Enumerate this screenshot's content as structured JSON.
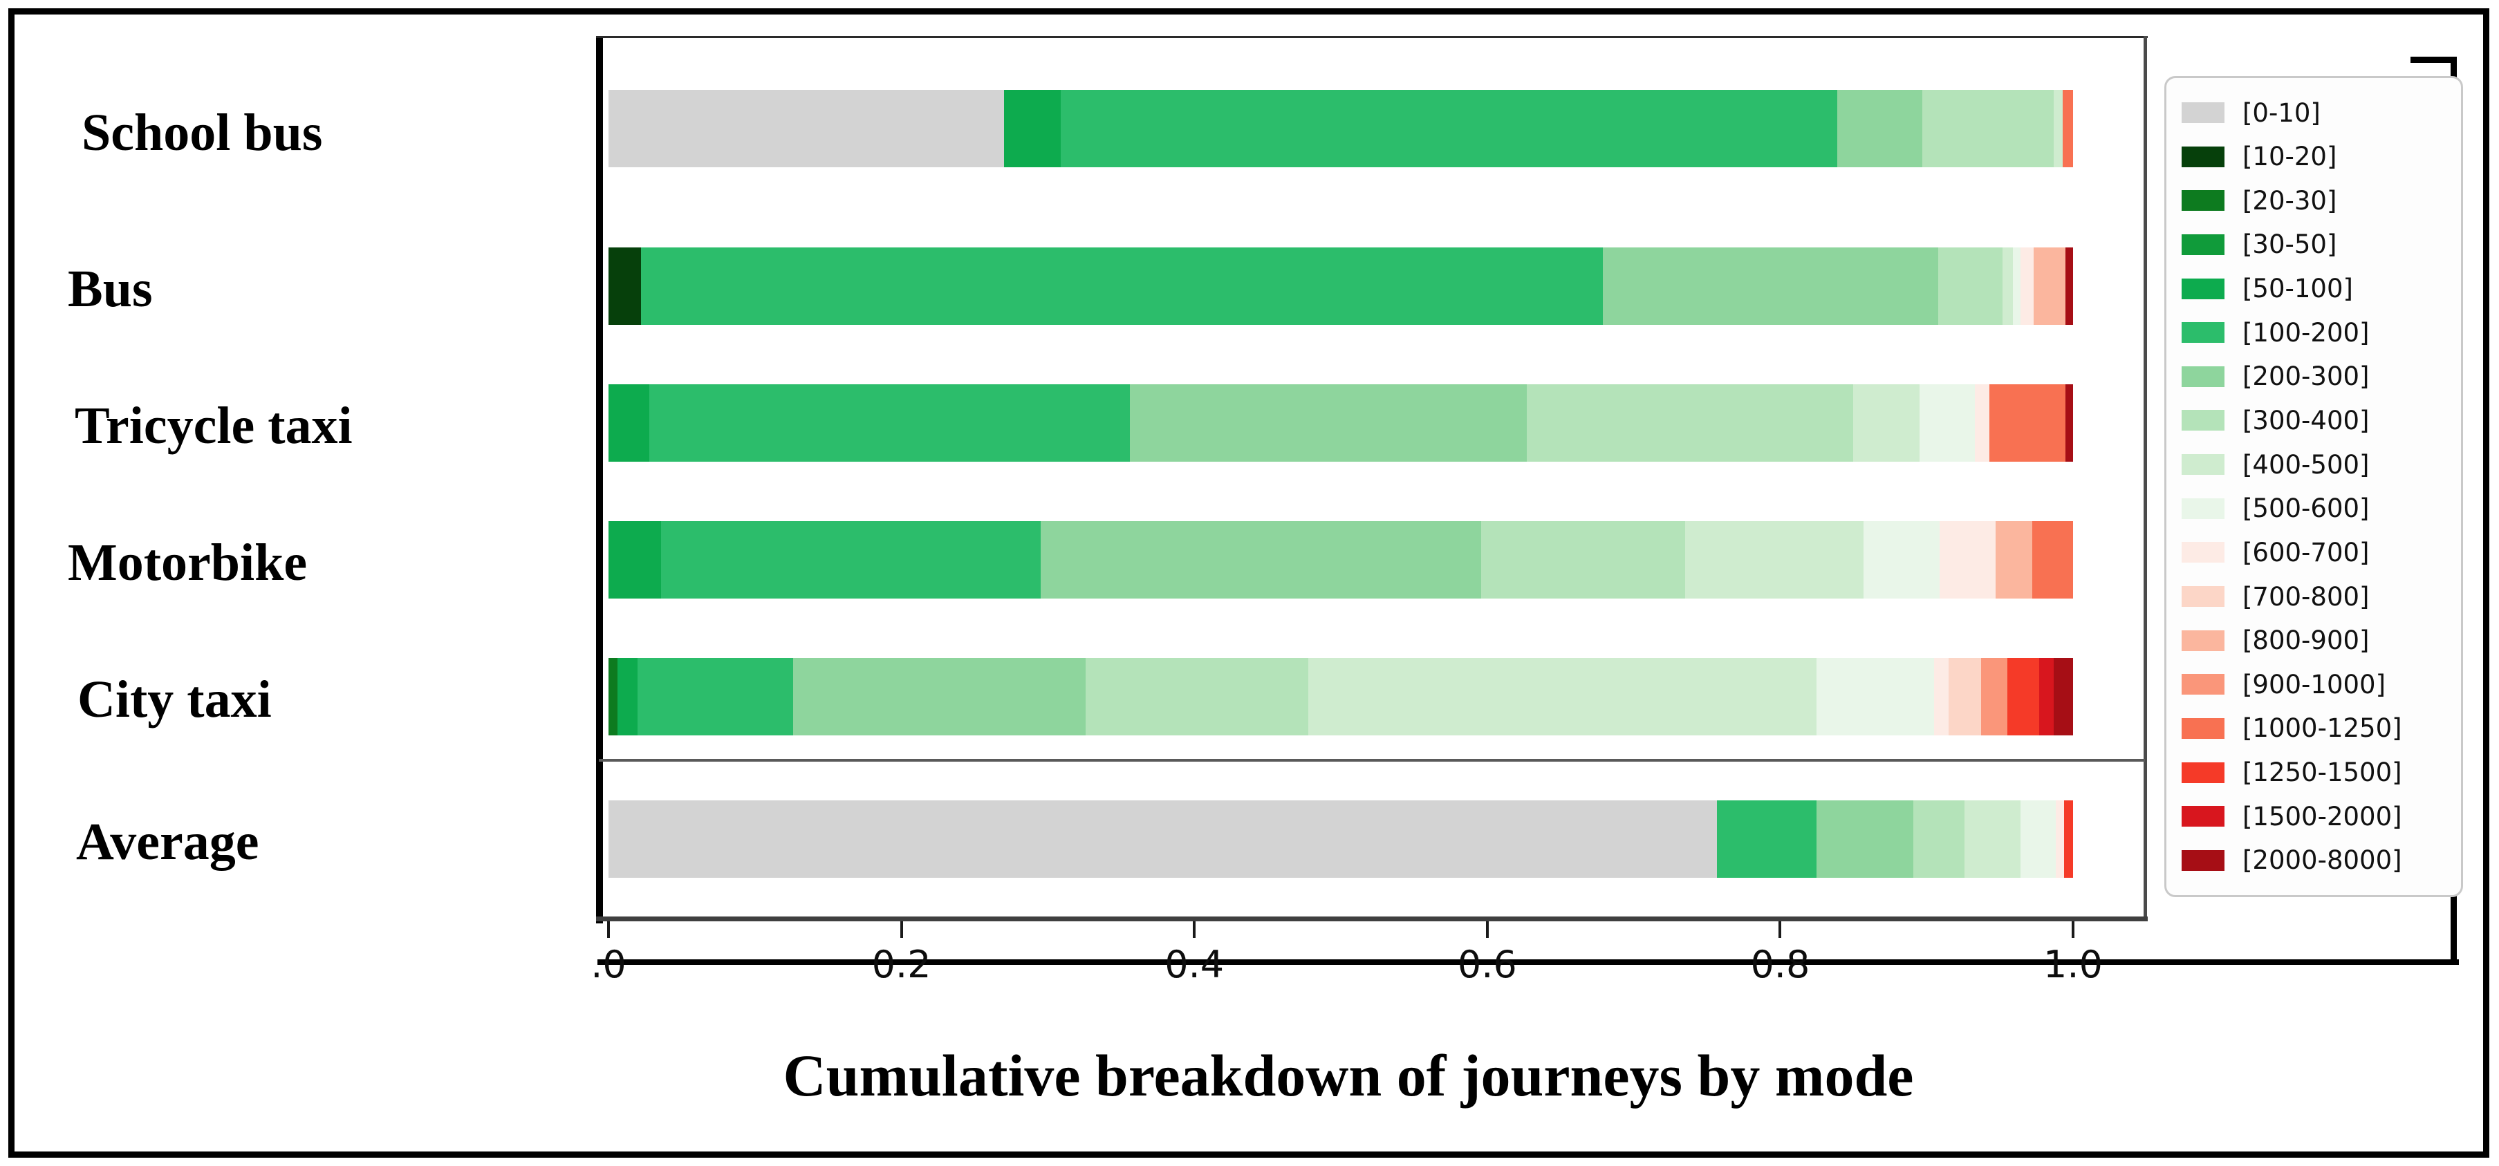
{
  "title": "Cumulative breakdown of journeys by mode",
  "axis": {
    "tick_labels": [
      ".0",
      "0.2",
      "0.4",
      "0.6",
      "0.8",
      "1.0"
    ],
    "tick_values": [
      0.0,
      0.2,
      0.4,
      0.6,
      0.8,
      1.0
    ]
  },
  "legend": {
    "position": "right",
    "border_color": "#c9c9c9"
  },
  "chart_data": {
    "type": "bar",
    "orientation": "horizontal",
    "stacked": true,
    "title": "Cumulative breakdown of journeys by mode",
    "xlabel": "",
    "ylabel": "",
    "xlim": [
      0.0,
      1.0
    ],
    "x_ticks": [
      0.0,
      0.2,
      0.4,
      0.6,
      0.8,
      1.0
    ],
    "grid": false,
    "legend_position": "right",
    "categories": [
      "School bus",
      "Bus",
      "Tricycle taxi",
      "Motorbike",
      "City taxi",
      "Average"
    ],
    "bins": [
      "[0-10]",
      "[10-20]",
      "[20-30]",
      "[30-50]",
      "[50-100]",
      "[100-200]",
      "[200-300]",
      "[300-400]",
      "[400-500]",
      "[500-600]",
      "[600-700]",
      "[700-800]",
      "[800-900]",
      "[900-1000]",
      "[1000-1250]",
      "[1250-1500]",
      "[1500-2000]",
      "[2000-8000]"
    ],
    "bin_colors": {
      "[0-10]": "#d3d3d3",
      "[10-20]": "#06400b",
      "[20-30]": "#0d7b1f",
      "[30-50]": "#109b3a",
      "[50-100]": "#0dab4e",
      "[100-200]": "#2cbd6b",
      "[200-300]": "#8ed59d",
      "[300-400]": "#b4e3b9",
      "[400-500]": "#cfeccf",
      "[500-600]": "#e9f6e9",
      "[600-700]": "#fdebe5",
      "[700-800]": "#fcd6c7",
      "[800-900]": "#fbb69e",
      "[900-1000]": "#fa967a",
      "[1000-1250]": "#f87152",
      "[1250-1500]": "#f53a28",
      "[1500-2000]": "#d8161e",
      "[2000-8000]": "#a60e15"
    },
    "rows": [
      {
        "category": "School bus",
        "segments": [
          {
            "bin": "[0-10]",
            "value": 0.27
          },
          {
            "bin": "[50-100]",
            "value": 0.039
          },
          {
            "bin": "[100-200]",
            "value": 0.53
          },
          {
            "bin": "[200-300]",
            "value": 0.058
          },
          {
            "bin": "[300-400]",
            "value": 0.09
          },
          {
            "bin": "[400-500]",
            "value": 0.006
          },
          {
            "bin": "[1000-1250]",
            "value": 0.007
          }
        ]
      },
      {
        "category": "Bus",
        "segments": [
          {
            "bin": "[10-20]",
            "value": 0.022
          },
          {
            "bin": "[100-200]",
            "value": 0.657
          },
          {
            "bin": "[200-300]",
            "value": 0.229
          },
          {
            "bin": "[300-400]",
            "value": 0.044
          },
          {
            "bin": "[400-500]",
            "value": 0.007
          },
          {
            "bin": "[500-600]",
            "value": 0.005
          },
          {
            "bin": "[600-700]",
            "value": 0.009
          },
          {
            "bin": "[800-900]",
            "value": 0.022
          },
          {
            "bin": "[2000-8000]",
            "value": 0.005
          }
        ]
      },
      {
        "category": "Tricycle taxi",
        "segments": [
          {
            "bin": "[50-100]",
            "value": 0.028
          },
          {
            "bin": "[100-200]",
            "value": 0.328
          },
          {
            "bin": "[200-300]",
            "value": 0.271
          },
          {
            "bin": "[300-400]",
            "value": 0.223
          },
          {
            "bin": "[400-500]",
            "value": 0.045
          },
          {
            "bin": "[500-600]",
            "value": 0.038
          },
          {
            "bin": "[600-700]",
            "value": 0.01
          },
          {
            "bin": "[1000-1250]",
            "value": 0.052
          },
          {
            "bin": "[2000-8000]",
            "value": 0.005
          }
        ]
      },
      {
        "category": "Motorbike",
        "segments": [
          {
            "bin": "[50-100]",
            "value": 0.036
          },
          {
            "bin": "[100-200]",
            "value": 0.259
          },
          {
            "bin": "[200-300]",
            "value": 0.301
          },
          {
            "bin": "[300-400]",
            "value": 0.139
          },
          {
            "bin": "[400-500]",
            "value": 0.122
          },
          {
            "bin": "[500-600]",
            "value": 0.052
          },
          {
            "bin": "[600-700]",
            "value": 0.038
          },
          {
            "bin": "[800-900]",
            "value": 0.025
          },
          {
            "bin": "[1000-1250]",
            "value": 0.028
          }
        ]
      },
      {
        "category": "City taxi",
        "segments": [
          {
            "bin": "[20-30]",
            "value": 0.006
          },
          {
            "bin": "[50-100]",
            "value": 0.014
          },
          {
            "bin": "[100-200]",
            "value": 0.106
          },
          {
            "bin": "[200-300]",
            "value": 0.2
          },
          {
            "bin": "[300-400]",
            "value": 0.152
          },
          {
            "bin": "[400-500]",
            "value": 0.347
          },
          {
            "bin": "[500-600]",
            "value": 0.08
          },
          {
            "bin": "[600-700]",
            "value": 0.01
          },
          {
            "bin": "[700-800]",
            "value": 0.022
          },
          {
            "bin": "[900-1000]",
            "value": 0.018
          },
          {
            "bin": "[1250-1500]",
            "value": 0.022
          },
          {
            "bin": "[1500-2000]",
            "value": 0.01
          },
          {
            "bin": "[2000-8000]",
            "value": 0.013
          }
        ]
      },
      {
        "category": "Average",
        "segments": [
          {
            "bin": "[0-10]",
            "value": 0.757
          },
          {
            "bin": "[100-200]",
            "value": 0.068
          },
          {
            "bin": "[200-300]",
            "value": 0.066
          },
          {
            "bin": "[300-400]",
            "value": 0.035
          },
          {
            "bin": "[400-500]",
            "value": 0.038
          },
          {
            "bin": "[500-600]",
            "value": 0.024
          },
          {
            "bin": "[600-700]",
            "value": 0.006
          },
          {
            "bin": "[1250-1500]",
            "value": 0.006
          }
        ]
      }
    ]
  }
}
